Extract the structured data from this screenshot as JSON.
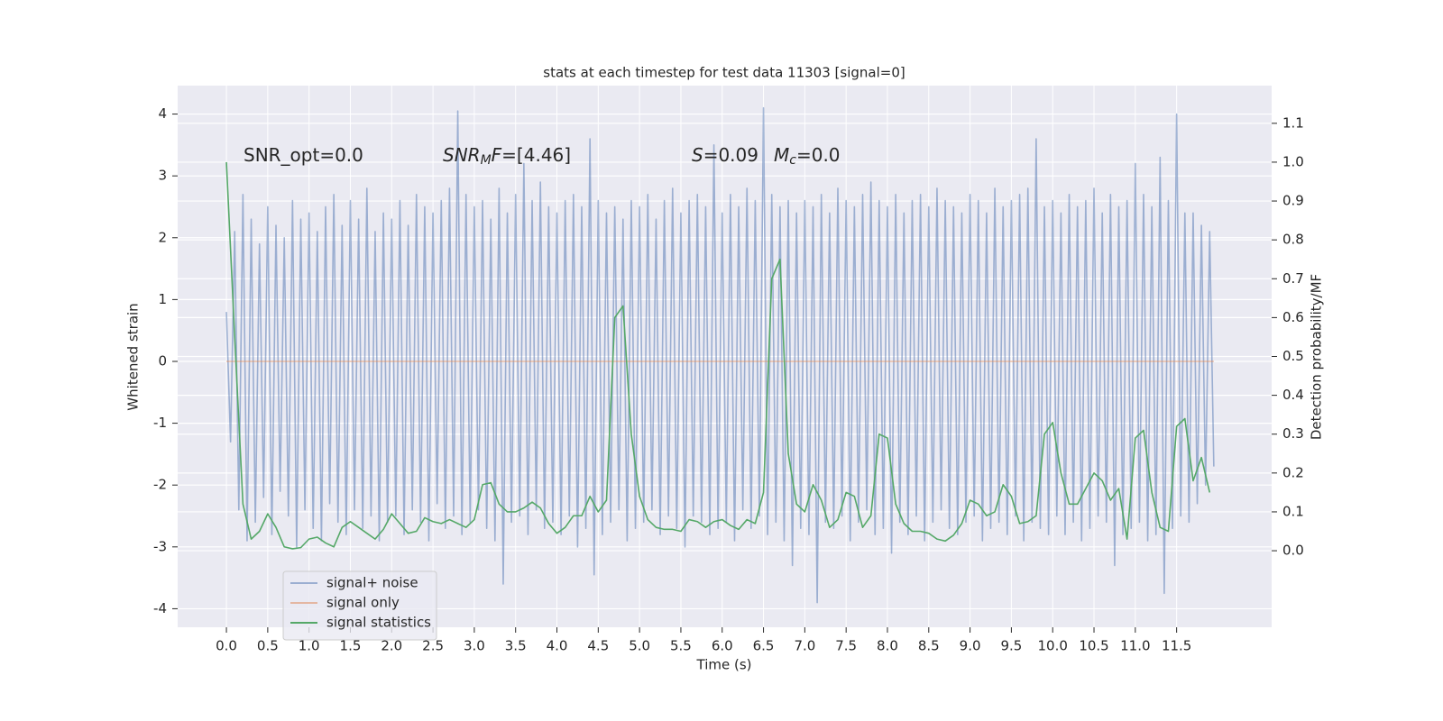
{
  "chart_data": {
    "type": "line",
    "title": "stats at each timestep for test data 11303 [signal=0]",
    "xlabel": "Time (s)",
    "ylabel": "Whitened strain",
    "y2label": "Detection probability/MF",
    "xlim": [
      -0.59,
      12.65
    ],
    "ylim": [
      -4.3,
      4.46
    ],
    "y2lim": [
      -0.197,
      1.197
    ],
    "xticks": [
      {
        "value": 0,
        "label": "0.0"
      },
      0.5,
      {
        "value": 1,
        "label": "1.0"
      },
      1.5,
      {
        "value": 2,
        "label": "2.0"
      },
      2.5,
      {
        "value": 3,
        "label": "3.0"
      },
      3.5,
      {
        "value": 4,
        "label": "4.0"
      },
      4.5,
      {
        "value": 5,
        "label": "5.0"
      },
      5.5,
      {
        "value": 6,
        "label": "6.0"
      },
      6.5,
      {
        "value": 7,
        "label": "7.0"
      },
      7.5,
      {
        "value": 8,
        "label": "8.0"
      },
      8.5,
      {
        "value": 9,
        "label": "9.0"
      },
      9.5,
      {
        "value": 10,
        "label": "10.0"
      },
      10.5,
      {
        "value": 11,
        "label": "11.0"
      },
      11.5
    ],
    "yticks": [
      -4,
      -3,
      -2,
      -1,
      0,
      1,
      2,
      3,
      4
    ],
    "y2ticks": [
      {
        "value": 0,
        "label": "0.0"
      },
      0.1,
      0.2,
      0.3,
      0.4,
      0.5,
      0.6,
      0.7,
      0.8,
      0.9,
      {
        "value": 1,
        "label": "1.0"
      },
      1.1
    ],
    "grid": true,
    "legend_loc": "lower left",
    "annotations": [
      [
        {
          "text": "SNR_opt=0.0"
        }
      ],
      [
        {
          "text": "SNR",
          "italic": true
        },
        {
          "text": "M",
          "italic": true,
          "sub": true
        },
        {
          "text": "F",
          "italic": true
        },
        {
          "text": "=[4.46]"
        }
      ],
      [
        {
          "text": "S",
          "italic": true
        },
        {
          "text": "=0.09"
        }
      ],
      [
        {
          "text": "M",
          "italic": true
        },
        {
          "text": "c",
          "italic": true,
          "sub": true
        },
        {
          "text": "=0.0"
        }
      ]
    ],
    "series": [
      {
        "name": "signal+ noise",
        "color": "#4c72b0",
        "opacity": 0.5,
        "axis": "y",
        "x": [
          0,
          0.05,
          0.1,
          0.15,
          0.2,
          0.25,
          0.3,
          0.35,
          0.4,
          0.45,
          0.5,
          0.55,
          0.6,
          0.65,
          0.7,
          0.75,
          0.8,
          0.85,
          0.9,
          0.95,
          1,
          1.05,
          1.1,
          1.15,
          1.2,
          1.25,
          1.3,
          1.35,
          1.4,
          1.45,
          1.5,
          1.55,
          1.6,
          1.65,
          1.7,
          1.75,
          1.8,
          1.85,
          1.9,
          1.95,
          2,
          2.05,
          2.1,
          2.15,
          2.2,
          2.25,
          2.3,
          2.35,
          2.4,
          2.45,
          2.5,
          2.55,
          2.6,
          2.65,
          2.7,
          2.75,
          2.8,
          2.85,
          2.9,
          2.95,
          3,
          3.05,
          3.1,
          3.15,
          3.2,
          3.25,
          3.3,
          3.35,
          3.4,
          3.45,
          3.5,
          3.55,
          3.6,
          3.65,
          3.7,
          3.75,
          3.8,
          3.85,
          3.9,
          3.95,
          4,
          4.05,
          4.1,
          4.15,
          4.2,
          4.25,
          4.3,
          4.35,
          4.4,
          4.45,
          4.5,
          4.55,
          4.6,
          4.65,
          4.7,
          4.75,
          4.8,
          4.85,
          4.9,
          4.95,
          5,
          5.05,
          5.1,
          5.15,
          5.2,
          5.25,
          5.3,
          5.35,
          5.4,
          5.45,
          5.5,
          5.55,
          5.6,
          5.65,
          5.7,
          5.75,
          5.8,
          5.85,
          5.9,
          5.95,
          6,
          6.05,
          6.1,
          6.15,
          6.2,
          6.25,
          6.3,
          6.35,
          6.4,
          6.45,
          6.5,
          6.55,
          6.6,
          6.65,
          6.7,
          6.75,
          6.8,
          6.85,
          6.9,
          6.95,
          7,
          7.05,
          7.1,
          7.15,
          7.2,
          7.25,
          7.3,
          7.35,
          7.4,
          7.45,
          7.5,
          7.55,
          7.6,
          7.65,
          7.7,
          7.75,
          7.8,
          7.85,
          7.9,
          7.95,
          8,
          8.05,
          8.1,
          8.15,
          8.2,
          8.25,
          8.3,
          8.35,
          8.4,
          8.45,
          8.5,
          8.55,
          8.6,
          8.65,
          8.7,
          8.75,
          8.8,
          8.85,
          8.9,
          8.95,
          9,
          9.05,
          9.1,
          9.15,
          9.2,
          9.25,
          9.3,
          9.35,
          9.4,
          9.45,
          9.5,
          9.55,
          9.6,
          9.65,
          9.7,
          9.75,
          9.8,
          9.85,
          9.9,
          9.95,
          10,
          10.05,
          10.1,
          10.15,
          10.2,
          10.25,
          10.3,
          10.35,
          10.4,
          10.45,
          10.5,
          10.55,
          10.6,
          10.65,
          10.7,
          10.75,
          10.8,
          10.85,
          10.9,
          10.95,
          11,
          11.05,
          11.1,
          11.15,
          11.2,
          11.25,
          11.3,
          11.35,
          11.4,
          11.45,
          11.5,
          11.55,
          11.6,
          11.65,
          11.7,
          11.75,
          11.8,
          11.85,
          11.9,
          11.95
        ],
        "values": [
          0.8,
          -1.3,
          2.1,
          -2.4,
          2.7,
          -2.9,
          2.3,
          -2.6,
          1.9,
          -2.2,
          2.5,
          -2.8,
          2.2,
          -2.1,
          2.0,
          -2.5,
          2.6,
          -3.0,
          2.3,
          -2.4,
          2.4,
          -2.7,
          2.1,
          -2.9,
          2.5,
          -2.3,
          2.7,
          -2.6,
          2.2,
          -2.8,
          2.6,
          -2.4,
          2.3,
          -2.7,
          2.8,
          -2.5,
          2.1,
          -2.9,
          2.4,
          -2.6,
          2.3,
          -2.5,
          2.6,
          -2.8,
          2.2,
          -2.4,
          2.7,
          -2.6,
          2.5,
          -2.9,
          2.4,
          -2.3,
          2.6,
          -2.7,
          2.8,
          -2.5,
          4.05,
          -2.8,
          2.7,
          -2.6,
          2.5,
          -2.4,
          2.6,
          -2.7,
          2.3,
          -2.9,
          2.8,
          -3.6,
          2.4,
          -2.6,
          2.7,
          -2.5,
          3.2,
          -2.8,
          2.6,
          -2.4,
          2.9,
          -2.7,
          2.5,
          -2.6,
          2.4,
          -2.8,
          2.6,
          -2.5,
          2.7,
          -3.0,
          2.5,
          -2.7,
          3.6,
          -3.45,
          2.6,
          -2.8,
          2.4,
          -2.6,
          2.5,
          -2.4,
          2.3,
          -2.9,
          2.6,
          -2.7,
          2.5,
          -2.6,
          2.7,
          -2.4,
          2.3,
          -2.8,
          2.6,
          -2.5,
          2.8,
          -2.7,
          2.4,
          -3.0,
          2.6,
          -2.5,
          2.7,
          -2.6,
          2.5,
          -2.8,
          3.5,
          -2.7,
          2.4,
          -2.6,
          2.7,
          -2.9,
          2.5,
          -2.4,
          2.8,
          -2.7,
          2.6,
          -2.5,
          4.1,
          -2.8,
          2.7,
          -2.6,
          2.5,
          -2.9,
          2.6,
          -3.3,
          2.4,
          -2.7,
          2.6,
          -2.8,
          2.5,
          -3.9,
          2.7,
          -2.6,
          2.4,
          -2.7,
          2.8,
          -2.5,
          2.6,
          -2.9,
          2.5,
          -2.6,
          2.7,
          -2.4,
          2.9,
          -2.8,
          2.6,
          -2.7,
          2.5,
          -3.1,
          2.7,
          -2.6,
          2.4,
          -2.8,
          2.6,
          -2.5,
          2.7,
          -2.9,
          2.5,
          -2.6,
          2.8,
          -2.4,
          2.6,
          -2.7,
          2.5,
          -2.8,
          2.4,
          -2.6,
          2.7,
          -2.5,
          2.6,
          -2.9,
          2.4,
          -2.7,
          2.8,
          -2.6,
          2.5,
          -2.8,
          2.6,
          -2.5,
          2.7,
          -2.9,
          2.8,
          -2.6,
          3.6,
          -2.7,
          2.5,
          -2.8,
          2.6,
          -2.5,
          2.4,
          -2.8,
          2.7,
          -2.6,
          2.5,
          -2.9,
          2.6,
          -2.7,
          2.8,
          -2.5,
          2.4,
          -2.6,
          2.7,
          -3.3,
          2.5,
          -2.8,
          2.6,
          -2.7,
          3.2,
          -2.6,
          2.7,
          -2.9,
          2.5,
          -2.8,
          3.3,
          -3.75,
          2.6,
          -2.7,
          4.0,
          -2.5,
          2.4,
          -2.6,
          2.4,
          -2.3,
          2.2,
          -2.0,
          2.1,
          -1.7
        ]
      },
      {
        "name": "signal only",
        "color": "#dd8452",
        "opacity": 0.5,
        "axis": "y",
        "x": [
          0,
          11.95
        ],
        "values": [
          0,
          0
        ]
      },
      {
        "name": "signal statistics",
        "color": "#55a868",
        "opacity": 1,
        "axis": "y2",
        "x": [
          0,
          0.1,
          0.2,
          0.3,
          0.4,
          0.5,
          0.6,
          0.7,
          0.8,
          0.9,
          1,
          1.1,
          1.2,
          1.3,
          1.4,
          1.5,
          1.6,
          1.7,
          1.8,
          1.9,
          2,
          2.1,
          2.2,
          2.3,
          2.4,
          2.5,
          2.6,
          2.7,
          2.8,
          2.9,
          3,
          3.1,
          3.2,
          3.3,
          3.4,
          3.5,
          3.6,
          3.7,
          3.8,
          3.9,
          4,
          4.1,
          4.2,
          4.3,
          4.4,
          4.5,
          4.6,
          4.7,
          4.8,
          4.9,
          5,
          5.1,
          5.2,
          5.3,
          5.4,
          5.5,
          5.6,
          5.7,
          5.8,
          5.9,
          6,
          6.1,
          6.2,
          6.3,
          6.4,
          6.5,
          6.6,
          6.7,
          6.8,
          6.9,
          7,
          7.1,
          7.2,
          7.3,
          7.4,
          7.5,
          7.6,
          7.7,
          7.8,
          7.9,
          8,
          8.1,
          8.2,
          8.3,
          8.4,
          8.5,
          8.6,
          8.7,
          8.8,
          8.9,
          9,
          9.1,
          9.2,
          9.3,
          9.4,
          9.5,
          9.6,
          9.7,
          9.8,
          9.9,
          10,
          10.1,
          10.2,
          10.3,
          10.4,
          10.5,
          10.6,
          10.7,
          10.8,
          10.9,
          11,
          11.1,
          11.2,
          11.3,
          11.4,
          11.5,
          11.6,
          11.7,
          11.8,
          11.9
        ],
        "values": [
          1.0,
          0.55,
          0.12,
          0.03,
          0.05,
          0.095,
          0.06,
          0.01,
          0.005,
          0.008,
          0.03,
          0.035,
          0.02,
          0.01,
          0.06,
          0.075,
          0.06,
          0.045,
          0.03,
          0.055,
          0.095,
          0.07,
          0.045,
          0.05,
          0.085,
          0.075,
          0.07,
          0.08,
          0.07,
          0.06,
          0.08,
          0.17,
          0.175,
          0.12,
          0.1,
          0.1,
          0.11,
          0.125,
          0.11,
          0.07,
          0.045,
          0.06,
          0.09,
          0.09,
          0.14,
          0.1,
          0.13,
          0.6,
          0.63,
          0.3,
          0.14,
          0.08,
          0.06,
          0.055,
          0.055,
          0.05,
          0.08,
          0.075,
          0.06,
          0.075,
          0.08,
          0.065,
          0.055,
          0.08,
          0.07,
          0.15,
          0.7,
          0.75,
          0.25,
          0.12,
          0.1,
          0.17,
          0.13,
          0.06,
          0.08,
          0.15,
          0.14,
          0.06,
          0.09,
          0.3,
          0.29,
          0.12,
          0.07,
          0.05,
          0.05,
          0.045,
          0.03,
          0.025,
          0.04,
          0.07,
          0.13,
          0.12,
          0.09,
          0.1,
          0.17,
          0.14,
          0.07,
          0.075,
          0.09,
          0.3,
          0.33,
          0.2,
          0.12,
          0.12,
          0.16,
          0.2,
          0.18,
          0.13,
          0.16,
          0.03,
          0.29,
          0.31,
          0.15,
          0.06,
          0.05,
          0.32,
          0.34,
          0.18,
          0.24,
          0.15
        ]
      }
    ]
  }
}
